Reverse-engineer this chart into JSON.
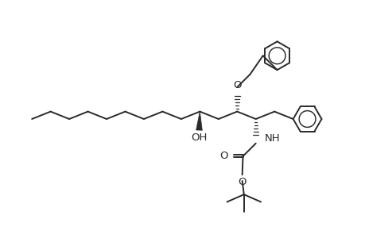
{
  "bg_color": "#ffffff",
  "line_color": "#2a2a2a",
  "line_width": 1.4,
  "font_size": 9.5,
  "fig_width": 4.6,
  "fig_height": 3.0,
  "dpi": 100,
  "xlim": [
    -0.5,
    9.5
  ],
  "ylim": [
    -3.5,
    3.5
  ]
}
